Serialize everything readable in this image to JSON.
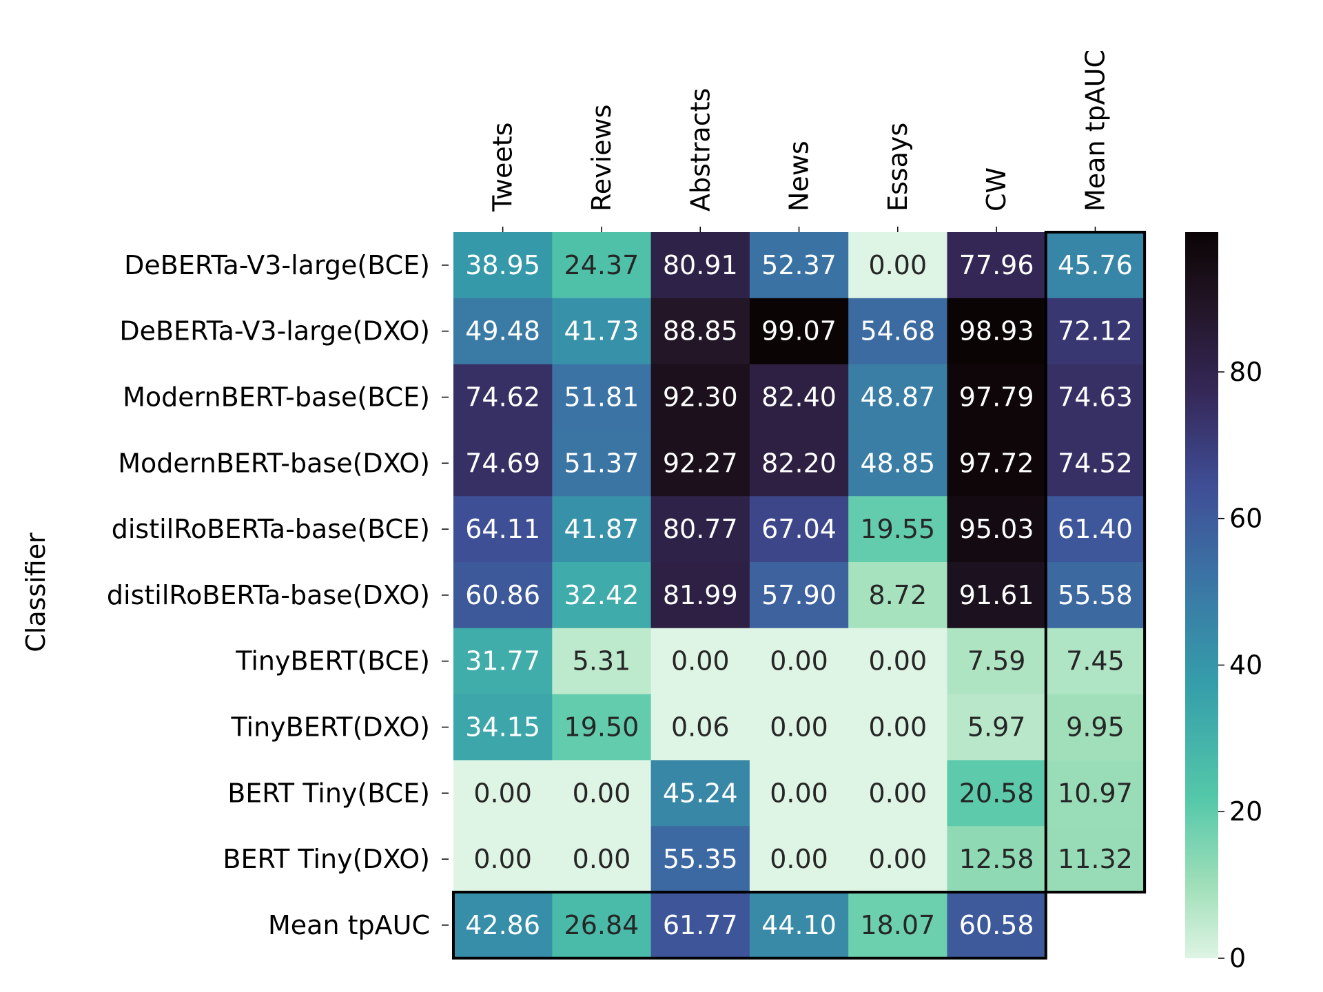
{
  "chart_data": {
    "type": "heatmap",
    "ylabel": "Classifier",
    "columns": [
      "Tweets",
      "Reviews",
      "Abstracts",
      "News",
      "Essays",
      "CW",
      "Mean tpAUC"
    ],
    "rows": [
      "DeBERTa-V3-large(BCE)",
      "DeBERTa-V3-large(DXO)",
      "ModernBERT-base(BCE)",
      "ModernBERT-base(DXO)",
      "distilRoBERTa-base(BCE)",
      "distilRoBERTa-base(DXO)",
      "TinyBERT(BCE)",
      "TinyBERT(DXO)",
      "BERT Tiny(BCE)",
      "BERT Tiny(DXO)",
      "Mean tpAUC"
    ],
    "values": [
      [
        "38.95",
        "24.37",
        "80.91",
        "52.37",
        "0.00",
        "77.96",
        "45.76"
      ],
      [
        "49.48",
        "41.73",
        "88.85",
        "99.07",
        "54.68",
        "98.93",
        "72.12"
      ],
      [
        "74.62",
        "51.81",
        "92.30",
        "82.40",
        "48.87",
        "97.79",
        "74.63"
      ],
      [
        "74.69",
        "51.37",
        "92.27",
        "82.20",
        "48.85",
        "97.72",
        "74.52"
      ],
      [
        "64.11",
        "41.87",
        "80.77",
        "67.04",
        "19.55",
        "95.03",
        "61.40"
      ],
      [
        "60.86",
        "32.42",
        "81.99",
        "57.90",
        "8.72",
        "91.61",
        "55.58"
      ],
      [
        "31.77",
        "5.31",
        "0.00",
        "0.00",
        "0.00",
        "7.59",
        "7.45"
      ],
      [
        "34.15",
        "19.50",
        "0.06",
        "0.00",
        "0.00",
        "5.97",
        "9.95"
      ],
      [
        "0.00",
        "0.00",
        "45.24",
        "0.00",
        "0.00",
        "20.58",
        "10.97"
      ],
      [
        "0.00",
        "0.00",
        "55.35",
        "0.00",
        "0.00",
        "12.58",
        "11.32"
      ],
      [
        "42.86",
        "26.84",
        "61.77",
        "44.10",
        "18.07",
        "60.58",
        null
      ]
    ],
    "color_values": [
      [
        38.95,
        24.37,
        80.91,
        52.37,
        0.0,
        77.96,
        45.76
      ],
      [
        49.48,
        41.73,
        88.85,
        99.07,
        54.68,
        98.93,
        72.12
      ],
      [
        74.62,
        51.81,
        92.3,
        82.4,
        48.87,
        97.79,
        74.63
      ],
      [
        74.69,
        51.37,
        92.27,
        82.2,
        48.85,
        97.72,
        74.52
      ],
      [
        64.11,
        41.87,
        80.77,
        67.04,
        19.55,
        95.03,
        61.4
      ],
      [
        60.86,
        32.42,
        81.99,
        57.9,
        8.72,
        91.61,
        55.58
      ],
      [
        31.77,
        5.31,
        0.0,
        0.0,
        0.0,
        7.59,
        7.45
      ],
      [
        34.15,
        19.5,
        0.06,
        0.0,
        0.0,
        5.97,
        9.95
      ],
      [
        0.0,
        0.0,
        45.24,
        0.0,
        0.0,
        20.58,
        10.97
      ],
      [
        0.0,
        0.0,
        55.35,
        0.0,
        0.0,
        12.58,
        11.32
      ],
      [
        42.86,
        26.84,
        61.77,
        44.1,
        18.07,
        60.58,
        null
      ]
    ],
    "colorbar": {
      "colormap": "mako_r",
      "range": [
        0,
        99.07
      ],
      "ticks": [
        0,
        20,
        40,
        60,
        80
      ]
    },
    "highlights": [
      "Mean tpAUC column",
      "Mean tpAUC row"
    ]
  }
}
